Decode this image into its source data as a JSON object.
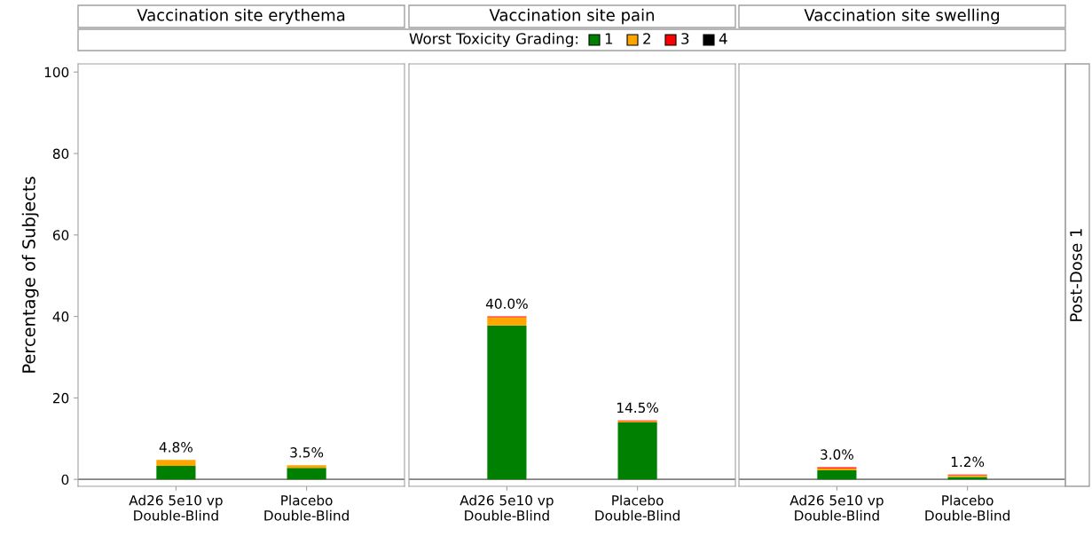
{
  "chart_data": [
    {
      "type": "bar",
      "title": "Vaccination site erythema",
      "ylabel": "Percentage of Subjects",
      "legend_title": "Worst Toxicity Grading:",
      "legend": "top",
      "stacked": true,
      "categories": [
        "Ad26 5e10 vp\nDouble-Blind",
        "Placebo\nDouble-Blind"
      ],
      "ylim": [
        -1.7,
        102
      ],
      "yticks": [
        0,
        20,
        40,
        60,
        80,
        100
      ],
      "grid": false,
      "totals": [
        "4.8%",
        "3.5%"
      ],
      "ref_lines": [
        {
          "axis": "y",
          "value": 0,
          "color": "#808080"
        }
      ],
      "series": [
        {
          "name": "1",
          "color": "#008000",
          "values": [
            3.3,
            2.8
          ]
        },
        {
          "name": "2",
          "color": "#ffa500",
          "values": [
            1.5,
            0.7
          ]
        },
        {
          "name": "3",
          "color": "#ff0000",
          "values": [
            0,
            0
          ]
        },
        {
          "name": "4",
          "color": "#000000",
          "values": [
            0,
            0
          ]
        }
      ]
    },
    {
      "type": "bar",
      "title": "Vaccination site pain",
      "stacked": true,
      "categories": [
        "Ad26 5e10 vp\nDouble-Blind",
        "Placebo\nDouble-Blind"
      ],
      "ylim": [
        -1.7,
        102
      ],
      "tick_labels": "x",
      "grid": false,
      "totals": [
        "40.0%",
        "14.5%"
      ],
      "ref_lines": [
        {
          "axis": "y",
          "value": 0,
          "color": "#808080"
        }
      ],
      "series": [
        {
          "color": "#008000",
          "values": [
            37.8,
            14.0
          ]
        },
        {
          "color": "#ffa500",
          "values": [
            2.0,
            0.3
          ]
        },
        {
          "color": "#ff0000",
          "values": [
            0.2,
            0.2
          ]
        },
        {
          "color": "#000000",
          "values": [
            0,
            0
          ]
        }
      ]
    },
    {
      "type": "bar",
      "title": "Vaccination site swelling",
      "stacked": true,
      "categories": [
        "Ad26 5e10 vp\nDouble-Blind",
        "Placebo\nDouble-Blind"
      ],
      "ylim": [
        -1.7,
        102
      ],
      "tick_labels": "x",
      "grid": false,
      "totals": [
        "3.0%",
        "1.2%"
      ],
      "ref_lines": [
        {
          "axis": "y",
          "value": 0,
          "color": "#808080"
        }
      ],
      "annotations": [
        "Post-Dose 1"
      ],
      "series": [
        {
          "color": "#008000",
          "values": [
            2.2,
            0.6
          ]
        },
        {
          "color": "#ffa500",
          "values": [
            0.5,
            0.4
          ]
        },
        {
          "color": "#ff0000",
          "values": [
            0.3,
            0.2
          ]
        },
        {
          "color": "#000000",
          "values": [
            0,
            0
          ]
        }
      ]
    }
  ]
}
